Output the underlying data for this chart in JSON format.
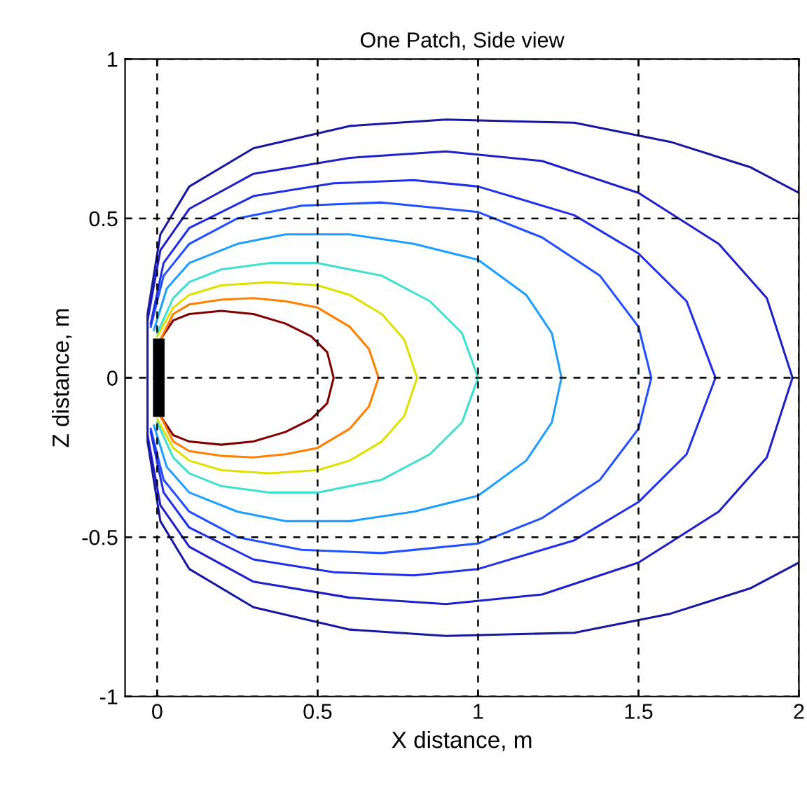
{
  "chart_data": {
    "type": "line",
    "title": "One Patch, Side view",
    "xlabel": "X distance, m",
    "ylabel": "Z distance, m",
    "xlim": [
      -0.1,
      2
    ],
    "ylim": [
      -1,
      1
    ],
    "xticks": [
      0,
      0.5,
      1,
      1.5,
      2
    ],
    "yticks": [
      -1,
      -0.5,
      0,
      0.5,
      1
    ],
    "grid": true,
    "marker": "none",
    "line_style": "solid",
    "series": [
      {
        "color": "#800000",
        "x": [
          0.01,
          0.05,
          0.1,
          0.2,
          0.3,
          0.4,
          0.48,
          0.53,
          0.55,
          0.53,
          0.48,
          0.4,
          0.3,
          0.2,
          0.1,
          0.05,
          0.01
        ],
        "values": [
          0.12,
          0.18,
          0.2,
          0.21,
          0.2,
          0.17,
          0.13,
          0.08,
          0.0,
          -0.08,
          -0.13,
          -0.17,
          -0.2,
          -0.21,
          -0.2,
          -0.18,
          -0.12
        ]
      },
      {
        "color": "#ff8000",
        "x": [
          0.01,
          0.05,
          0.1,
          0.2,
          0.3,
          0.4,
          0.5,
          0.6,
          0.66,
          0.69,
          0.66,
          0.6,
          0.5,
          0.4,
          0.3,
          0.2,
          0.1,
          0.05,
          0.01
        ],
        "values": [
          0.12,
          0.2,
          0.23,
          0.245,
          0.25,
          0.24,
          0.22,
          0.16,
          0.09,
          0.0,
          -0.09,
          -0.16,
          -0.22,
          -0.24,
          -0.25,
          -0.245,
          -0.23,
          -0.2,
          -0.12
        ]
      },
      {
        "color": "#e0e000",
        "x": [
          0.0,
          0.05,
          0.1,
          0.2,
          0.35,
          0.5,
          0.6,
          0.7,
          0.77,
          0.81,
          0.77,
          0.7,
          0.6,
          0.5,
          0.35,
          0.2,
          0.1,
          0.05,
          0.0
        ],
        "values": [
          0.13,
          0.22,
          0.26,
          0.29,
          0.3,
          0.29,
          0.26,
          0.2,
          0.12,
          0.0,
          -0.12,
          -0.2,
          -0.26,
          -0.29,
          -0.3,
          -0.29,
          -0.26,
          -0.22,
          -0.13
        ]
      },
      {
        "color": "#40e0d0",
        "x": [
          0.0,
          0.05,
          0.1,
          0.2,
          0.35,
          0.5,
          0.7,
          0.85,
          0.95,
          1.0,
          0.95,
          0.85,
          0.7,
          0.5,
          0.35,
          0.2,
          0.1,
          0.05,
          0.0
        ],
        "values": [
          0.14,
          0.25,
          0.3,
          0.34,
          0.36,
          0.36,
          0.32,
          0.24,
          0.14,
          0.0,
          -0.14,
          -0.24,
          -0.32,
          -0.36,
          -0.36,
          -0.34,
          -0.3,
          -0.25,
          -0.14
        ]
      },
      {
        "color": "#1e9fff",
        "x": [
          -0.01,
          0.03,
          0.1,
          0.25,
          0.4,
          0.6,
          0.8,
          1.0,
          1.15,
          1.23,
          1.26,
          1.23,
          1.15,
          1.0,
          0.8,
          0.6,
          0.4,
          0.25,
          0.1,
          0.03,
          -0.01
        ],
        "values": [
          0.15,
          0.28,
          0.36,
          0.42,
          0.45,
          0.45,
          0.42,
          0.37,
          0.26,
          0.14,
          0.0,
          -0.14,
          -0.26,
          -0.37,
          -0.42,
          -0.45,
          -0.45,
          -0.42,
          -0.36,
          -0.28,
          -0.15
        ]
      },
      {
        "color": "#2050ff",
        "x": [
          -0.02,
          0.02,
          0.1,
          0.25,
          0.45,
          0.7,
          1.0,
          1.2,
          1.38,
          1.5,
          1.54,
          1.5,
          1.38,
          1.2,
          1.0,
          0.7,
          0.45,
          0.25,
          0.1,
          0.02,
          -0.02
        ],
        "values": [
          0.16,
          0.32,
          0.42,
          0.5,
          0.54,
          0.55,
          0.52,
          0.44,
          0.32,
          0.16,
          0.0,
          -0.16,
          -0.32,
          -0.44,
          -0.52,
          -0.55,
          -0.54,
          -0.5,
          -0.42,
          -0.32,
          -0.16
        ]
      },
      {
        "color": "#2030e8",
        "x": [
          -0.02,
          0.02,
          0.1,
          0.3,
          0.55,
          0.8,
          1.0,
          1.3,
          1.5,
          1.65,
          1.74,
          1.65,
          1.5,
          1.3,
          1.0,
          0.8,
          0.55,
          0.3,
          0.1,
          0.02,
          -0.02
        ],
        "values": [
          0.17,
          0.36,
          0.47,
          0.57,
          0.61,
          0.62,
          0.6,
          0.51,
          0.39,
          0.24,
          0.0,
          -0.24,
          -0.39,
          -0.51,
          -0.6,
          -0.62,
          -0.61,
          -0.57,
          -0.47,
          -0.36,
          -0.17
        ]
      },
      {
        "color": "#2020c8",
        "x": [
          -0.03,
          0.01,
          0.1,
          0.3,
          0.6,
          0.9,
          1.2,
          1.5,
          1.75,
          1.9,
          1.98,
          1.9,
          1.75,
          1.5,
          1.2,
          0.9,
          0.6,
          0.3,
          0.1,
          0.01,
          -0.03
        ],
        "values": [
          0.18,
          0.4,
          0.53,
          0.64,
          0.69,
          0.71,
          0.68,
          0.58,
          0.42,
          0.25,
          0.0,
          -0.25,
          -0.42,
          -0.58,
          -0.68,
          -0.71,
          -0.69,
          -0.64,
          -0.53,
          -0.4,
          -0.18
        ]
      },
      {
        "color": "#1818a0",
        "x": [
          2.0,
          1.85,
          1.6,
          1.3,
          0.9,
          0.6,
          0.3,
          0.1,
          0.01,
          -0.03,
          -0.03,
          0.01,
          0.1,
          0.3,
          0.6,
          0.9,
          1.3,
          1.6,
          1.85,
          2.0
        ],
        "values": [
          0.58,
          0.66,
          0.74,
          0.8,
          0.81,
          0.79,
          0.72,
          0.6,
          0.45,
          0.2,
          -0.2,
          -0.45,
          -0.6,
          -0.72,
          -0.79,
          -0.81,
          -0.8,
          -0.74,
          -0.66,
          -0.58
        ]
      }
    ]
  }
}
